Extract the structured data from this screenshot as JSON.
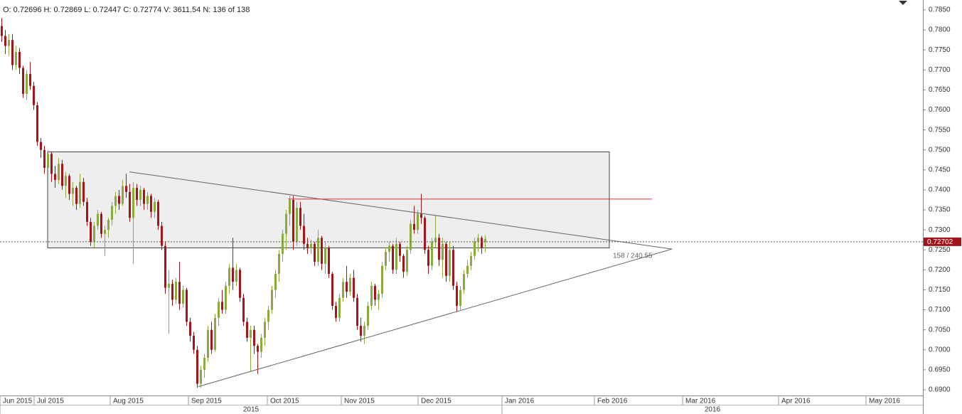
{
  "chart_data": {
    "type": "candlestick",
    "header": "O: 0.72696  H: 0.72869  L: 0.72447  C: 0.72774  V: 3611.54  N: 136 of 138",
    "up_color": "#8aab3c",
    "down_color": "#a3151a",
    "xlim": [
      -0.4,
      259.2
    ],
    "ylim": [
      0.68875,
      0.78749
    ],
    "yticks": [
      {
        "value": 0.69,
        "label": "0.6900"
      },
      {
        "value": 0.695,
        "label": "0.6950"
      },
      {
        "value": 0.7,
        "label": "0.7000"
      },
      {
        "value": 0.705,
        "label": "0.7050"
      },
      {
        "value": 0.71,
        "label": "0.7100"
      },
      {
        "value": 0.715,
        "label": "0.7150"
      },
      {
        "value": 0.72,
        "label": "0.7200"
      },
      {
        "value": 0.725,
        "label": "0.7250"
      },
      {
        "value": 0.73,
        "label": "0.7300"
      },
      {
        "value": 0.735,
        "label": "0.7350"
      },
      {
        "value": 0.74,
        "label": "0.7400"
      },
      {
        "value": 0.745,
        "label": "0.7450"
      },
      {
        "value": 0.75,
        "label": "0.7500"
      },
      {
        "value": 0.755,
        "label": "0.7550"
      },
      {
        "value": 0.76,
        "label": "0.7600"
      },
      {
        "value": 0.765,
        "label": "0.7650"
      },
      {
        "value": 0.77,
        "label": "0.7700"
      },
      {
        "value": 0.775,
        "label": "0.7750"
      },
      {
        "value": 0.78,
        "label": "0.7800"
      },
      {
        "value": 0.785,
        "label": "0.7850"
      }
    ],
    "xticks": [
      {
        "value": -0.4,
        "label": "Jun 2015"
      },
      {
        "value": 9.2,
        "label": "Jul 2015"
      },
      {
        "value": 30.6,
        "label": "Aug 2015"
      },
      {
        "value": 52.6,
        "label": "Sep 2015"
      },
      {
        "value": 74.8,
        "label": "Oct 2015"
      },
      {
        "value": 95.6,
        "label": "Nov 2015"
      },
      {
        "value": 117.2,
        "label": "Dec 2015"
      },
      {
        "value": 140.8,
        "label": "Jan 2016"
      },
      {
        "value": 166.8,
        "label": "Feb 2016"
      },
      {
        "value": 191.6,
        "label": "Mar 2016"
      },
      {
        "value": 218.6,
        "label": "Apr 2016"
      },
      {
        "value": 243.2,
        "label": "May 2016"
      }
    ],
    "years": [
      {
        "value": -0.4,
        "label": "2015"
      },
      {
        "value": 140.8,
        "label": "2016"
      }
    ],
    "last_price": 0.72702,
    "last_price_color": "#a3151a",
    "rectangle": {
      "x": [
        13,
        171
      ],
      "y": [
        0.7255,
        0.7495
      ]
    },
    "trendlines": [
      {
        "x": [
          36,
          188.6
        ],
        "y": [
          0.7445,
          0.7252
        ]
      },
      {
        "x": [
          55.4,
          188.6
        ],
        "y": [
          0.6908,
          0.7252
        ]
      }
    ],
    "hline": {
      "x": [
        80.6,
        183
      ],
      "y": 0.7377,
      "color": "#e03030"
    },
    "measure_label": {
      "text": "158 / 240.55",
      "x": 172,
      "y": 0.7235
    },
    "ohlc": [
      [
        0.781,
        0.783,
        0.777,
        0.7785
      ],
      [
        0.7785,
        0.78,
        0.774,
        0.776
      ],
      [
        0.776,
        0.779,
        0.7735,
        0.7775
      ],
      [
        0.7775,
        0.779,
        0.77,
        0.7712
      ],
      [
        0.7712,
        0.776,
        0.77,
        0.7745
      ],
      [
        0.7745,
        0.7755,
        0.769,
        0.7705
      ],
      [
        0.7705,
        0.771,
        0.763,
        0.764
      ],
      [
        0.764,
        0.77,
        0.7625,
        0.769
      ],
      [
        0.769,
        0.772,
        0.765,
        0.766
      ],
      [
        0.766,
        0.767,
        0.76,
        0.7612
      ],
      [
        0.7612,
        0.762,
        0.751,
        0.752
      ],
      [
        0.752,
        0.753,
        0.748,
        0.75
      ],
      [
        0.75,
        0.751,
        0.744,
        0.7455
      ],
      [
        0.7455,
        0.75,
        0.743,
        0.749
      ],
      [
        0.749,
        0.7495,
        0.742,
        0.744
      ],
      [
        0.744,
        0.746,
        0.7405,
        0.7425
      ],
      [
        0.7425,
        0.748,
        0.7415,
        0.7465
      ],
      [
        0.7465,
        0.7475,
        0.74,
        0.741
      ],
      [
        0.741,
        0.7445,
        0.738,
        0.7435
      ],
      [
        0.7435,
        0.744,
        0.7375,
        0.739
      ],
      [
        0.739,
        0.742,
        0.736,
        0.7405
      ],
      [
        0.7405,
        0.741,
        0.735,
        0.7365
      ],
      [
        0.7365,
        0.744,
        0.7355,
        0.742
      ],
      [
        0.742,
        0.743,
        0.736,
        0.737
      ],
      [
        0.737,
        0.738,
        0.731,
        0.732
      ],
      [
        0.732,
        0.733,
        0.726,
        0.727
      ],
      [
        0.727,
        0.732,
        0.7255,
        0.731
      ],
      [
        0.731,
        0.735,
        0.73,
        0.734
      ],
      [
        0.734,
        0.7345,
        0.728,
        0.729
      ],
      [
        0.729,
        0.731,
        0.7235,
        0.73
      ],
      [
        0.73,
        0.733,
        0.728,
        0.7325
      ],
      [
        0.7325,
        0.737,
        0.731,
        0.736
      ],
      [
        0.736,
        0.7395,
        0.734,
        0.7385
      ],
      [
        0.7385,
        0.74,
        0.735,
        0.7365
      ],
      [
        0.7365,
        0.7425,
        0.736,
        0.741
      ],
      [
        0.741,
        0.744,
        0.738,
        0.7395
      ],
      [
        0.7395,
        0.7415,
        0.732,
        0.733
      ],
      [
        0.733,
        0.742,
        0.7215,
        0.7405
      ],
      [
        0.7405,
        0.7415,
        0.736,
        0.7375
      ],
      [
        0.7375,
        0.741,
        0.736,
        0.74
      ],
      [
        0.74,
        0.7405,
        0.735,
        0.7365
      ],
      [
        0.7365,
        0.7395,
        0.735,
        0.7385
      ],
      [
        0.7385,
        0.739,
        0.733,
        0.7345
      ],
      [
        0.7345,
        0.738,
        0.733,
        0.737
      ],
      [
        0.737,
        0.7375,
        0.73,
        0.731
      ],
      [
        0.731,
        0.732,
        0.725,
        0.726
      ],
      [
        0.726,
        0.727,
        0.714,
        0.7155
      ],
      [
        0.7155,
        0.72,
        0.704,
        0.7165
      ],
      [
        0.7165,
        0.7175,
        0.711,
        0.7125
      ],
      [
        0.7125,
        0.718,
        0.7115,
        0.717
      ],
      [
        0.717,
        0.722,
        0.71,
        0.7115
      ],
      [
        0.7115,
        0.716,
        0.7105,
        0.715
      ],
      [
        0.715,
        0.7155,
        0.706,
        0.707
      ],
      [
        0.707,
        0.708,
        0.702,
        0.7035
      ],
      [
        0.7035,
        0.7045,
        0.699,
        0.7
      ],
      [
        0.7,
        0.701,
        0.6905,
        0.6915
      ],
      [
        0.6915,
        0.696,
        0.6905,
        0.695
      ],
      [
        0.695,
        0.699,
        0.693,
        0.698
      ],
      [
        0.698,
        0.706,
        0.697,
        0.705
      ],
      [
        0.705,
        0.707,
        0.699,
        0.7
      ],
      [
        0.7,
        0.709,
        0.6995,
        0.708
      ],
      [
        0.708,
        0.713,
        0.706,
        0.712
      ],
      [
        0.712,
        0.715,
        0.709,
        0.71
      ],
      [
        0.71,
        0.717,
        0.709,
        0.716
      ],
      [
        0.716,
        0.7215,
        0.714,
        0.7205
      ],
      [
        0.7205,
        0.728,
        0.715,
        0.717
      ],
      [
        0.717,
        0.7215,
        0.716,
        0.72
      ],
      [
        0.72,
        0.7205,
        0.712,
        0.713
      ],
      [
        0.713,
        0.714,
        0.706,
        0.707
      ],
      [
        0.707,
        0.708,
        0.702,
        0.703
      ],
      [
        0.703,
        0.706,
        0.6945,
        0.705
      ],
      [
        0.705,
        0.706,
        0.699,
        0.701
      ],
      [
        0.701,
        0.7015,
        0.694,
        0.6995
      ],
      [
        0.6995,
        0.704,
        0.698,
        0.703
      ],
      [
        0.703,
        0.708,
        0.701,
        0.707
      ],
      [
        0.707,
        0.711,
        0.705,
        0.71
      ],
      [
        0.71,
        0.716,
        0.709,
        0.715
      ],
      [
        0.715,
        0.72,
        0.713,
        0.719
      ],
      [
        0.719,
        0.725,
        0.717,
        0.724
      ],
      [
        0.724,
        0.73,
        0.722,
        0.729
      ],
      [
        0.729,
        0.735,
        0.725,
        0.734
      ],
      [
        0.734,
        0.7385,
        0.731,
        0.7375
      ],
      [
        0.7375,
        0.7385,
        0.725,
        0.727
      ],
      [
        0.727,
        0.737,
        0.726,
        0.7355
      ],
      [
        0.7355,
        0.737,
        0.73,
        0.731
      ],
      [
        0.731,
        0.734,
        0.725,
        0.7265
      ],
      [
        0.7265,
        0.728,
        0.724,
        0.7255
      ],
      [
        0.7255,
        0.7275,
        0.724,
        0.7265
      ],
      [
        0.7265,
        0.727,
        0.721,
        0.722
      ],
      [
        0.722,
        0.73,
        0.721,
        0.728
      ],
      [
        0.728,
        0.7285,
        0.72,
        0.7215
      ],
      [
        0.7215,
        0.727,
        0.719,
        0.7255
      ],
      [
        0.7255,
        0.726,
        0.718,
        0.719
      ],
      [
        0.719,
        0.7195,
        0.71,
        0.711
      ],
      [
        0.711,
        0.712,
        0.707,
        0.708
      ],
      [
        0.708,
        0.714,
        0.707,
        0.713
      ],
      [
        0.713,
        0.718,
        0.712,
        0.717
      ],
      [
        0.717,
        0.721,
        0.713,
        0.7145
      ],
      [
        0.7145,
        0.719,
        0.7135,
        0.718
      ],
      [
        0.718,
        0.72,
        0.712,
        0.713
      ],
      [
        0.713,
        0.714,
        0.705,
        0.706
      ],
      [
        0.706,
        0.708,
        0.702,
        0.7035
      ],
      [
        0.7035,
        0.707,
        0.7015,
        0.706
      ],
      [
        0.706,
        0.712,
        0.705,
        0.711
      ],
      [
        0.711,
        0.717,
        0.71,
        0.716
      ],
      [
        0.716,
        0.7165,
        0.711,
        0.7125
      ],
      [
        0.7125,
        0.715,
        0.71,
        0.714
      ],
      [
        0.714,
        0.722,
        0.713,
        0.721
      ],
      [
        0.721,
        0.7255,
        0.72,
        0.7245
      ],
      [
        0.7245,
        0.727,
        0.722,
        0.726
      ],
      [
        0.726,
        0.7265,
        0.719,
        0.72
      ],
      [
        0.72,
        0.728,
        0.719,
        0.7265
      ],
      [
        0.7265,
        0.727,
        0.722,
        0.7235
      ],
      [
        0.7235,
        0.724,
        0.718,
        0.7195
      ],
      [
        0.7195,
        0.726,
        0.7185,
        0.725
      ],
      [
        0.725,
        0.7325,
        0.724,
        0.7315
      ],
      [
        0.7315,
        0.736,
        0.729,
        0.73
      ],
      [
        0.73,
        0.735,
        0.729,
        0.734
      ],
      [
        0.734,
        0.739,
        0.7315,
        0.733
      ],
      [
        0.733,
        0.7335,
        0.724,
        0.725
      ],
      [
        0.725,
        0.726,
        0.719,
        0.721
      ],
      [
        0.721,
        0.728,
        0.72,
        0.727
      ],
      [
        0.727,
        0.7335,
        0.7255,
        0.728
      ],
      [
        0.728,
        0.729,
        0.721,
        0.7225
      ],
      [
        0.7225,
        0.728,
        0.718,
        0.7265
      ],
      [
        0.7265,
        0.727,
        0.717,
        0.7185
      ],
      [
        0.7185,
        0.727,
        0.717,
        0.725
      ],
      [
        0.725,
        0.726,
        0.715,
        0.716
      ],
      [
        0.716,
        0.717,
        0.7095,
        0.711
      ],
      [
        0.711,
        0.716,
        0.71,
        0.715
      ],
      [
        0.715,
        0.72,
        0.714,
        0.719
      ],
      [
        0.719,
        0.7225,
        0.718,
        0.721
      ],
      [
        0.721,
        0.7245,
        0.72,
        0.7235
      ],
      [
        0.7235,
        0.728,
        0.7225,
        0.727
      ],
      [
        0.727,
        0.729,
        0.7245,
        0.728
      ],
      [
        0.728,
        0.7285,
        0.724,
        0.7255
      ],
      [
        0.72696,
        0.72869,
        0.72447,
        0.72774
      ]
    ]
  }
}
